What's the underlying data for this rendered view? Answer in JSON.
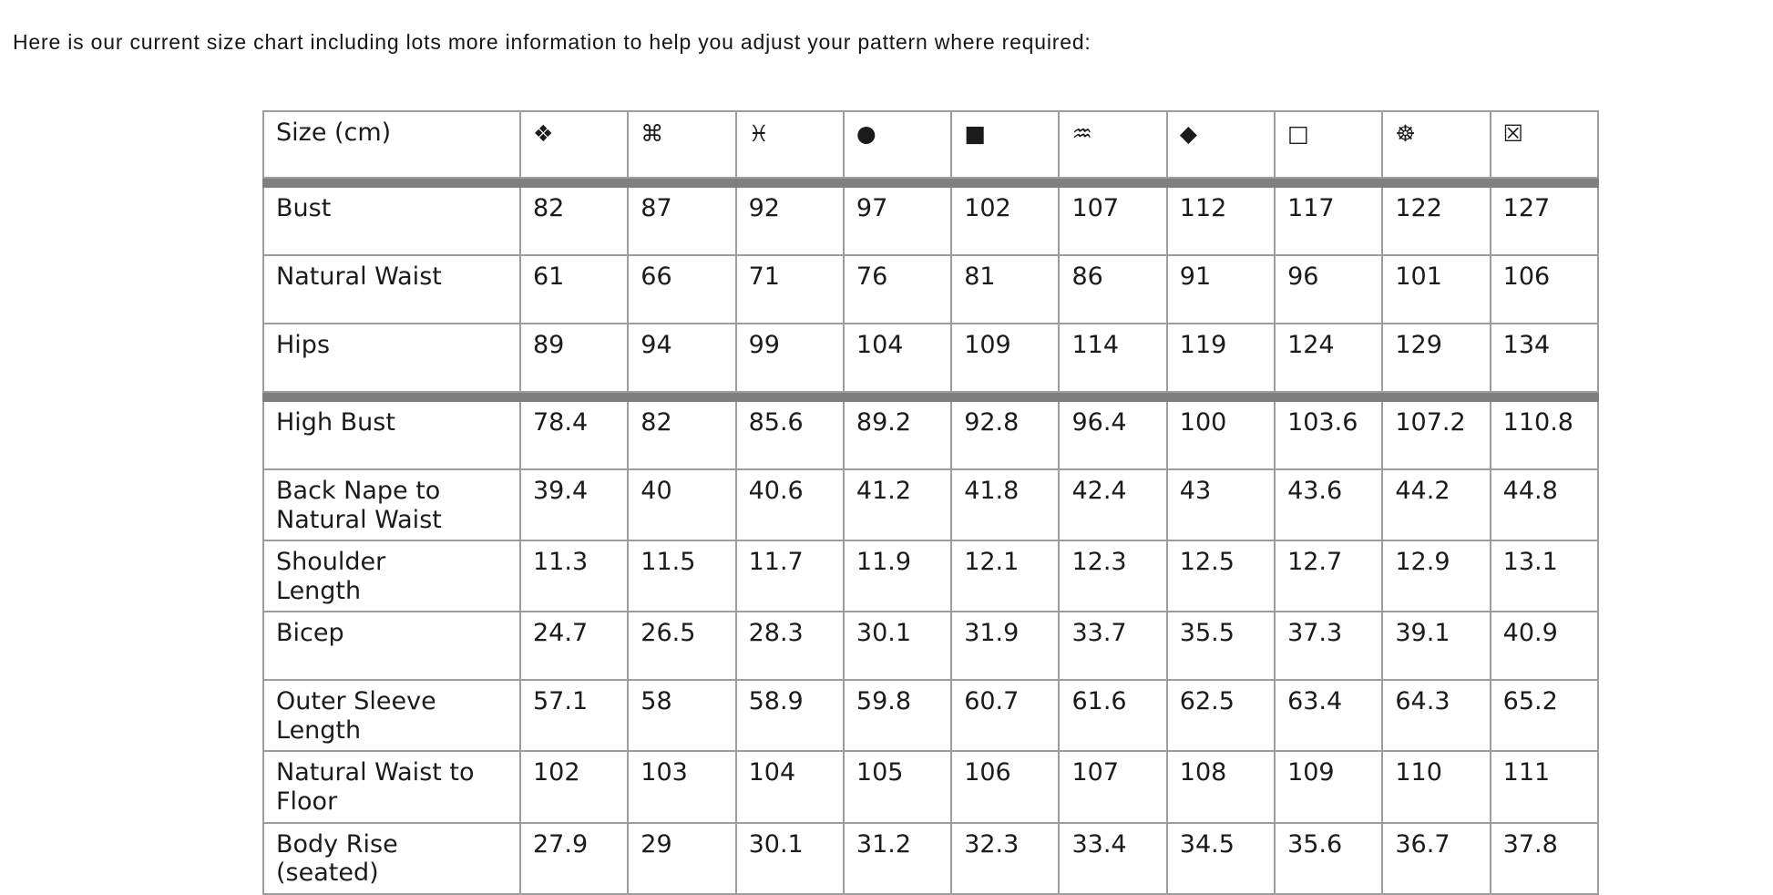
{
  "intro": "Here is our current size chart including lots more information to help you adjust your pattern where required:",
  "table": {
    "header": {
      "label": "Size (cm)",
      "size_symbols": [
        {
          "name": "four-diamonds",
          "glyph": "❖"
        },
        {
          "name": "command-sign",
          "glyph": "⌘"
        },
        {
          "name": "pisces-sign",
          "glyph": "♓"
        },
        {
          "name": "black-circle",
          "glyph": "●"
        },
        {
          "name": "black-square",
          "glyph": "■"
        },
        {
          "name": "double-waves",
          "glyph": "♒"
        },
        {
          "name": "black-diamond",
          "glyph": "◆"
        },
        {
          "name": "white-square",
          "glyph": "□"
        },
        {
          "name": "wheel",
          "glyph": "☸"
        },
        {
          "name": "boxed-x",
          "glyph": "☒"
        }
      ]
    },
    "groups": [
      {
        "rows": [
          {
            "label": "Bust",
            "values": [
              "82",
              "87",
              "92",
              "97",
              "102",
              "107",
              "112",
              "117",
              "122",
              "127"
            ]
          },
          {
            "label": "Natural Waist",
            "values": [
              "61",
              "66",
              "71",
              "76",
              "81",
              "86",
              "91",
              "96",
              "101",
              "106"
            ]
          },
          {
            "label": "Hips",
            "values": [
              "89",
              "94",
              "99",
              "104",
              "109",
              "114",
              "119",
              "124",
              "129",
              "134"
            ]
          }
        ]
      },
      {
        "rows": [
          {
            "label": "High Bust",
            "values": [
              "78.4",
              "82",
              "85.6",
              "89.2",
              "92.8",
              "96.4",
              "100",
              "103.6",
              "107.2",
              "110.8"
            ]
          },
          {
            "label": "Back Nape to Natural Waist",
            "values": [
              "39.4",
              "40",
              "40.6",
              "41.2",
              "41.8",
              "42.4",
              "43",
              "43.6",
              "44.2",
              "44.8"
            ]
          },
          {
            "label": "Shoulder Length",
            "values": [
              "11.3",
              "11.5",
              "11.7",
              "11.9",
              "12.1",
              "12.3",
              "12.5",
              "12.7",
              "12.9",
              "13.1"
            ]
          },
          {
            "label": "Bicep",
            "values": [
              "24.7",
              "26.5",
              "28.3",
              "30.1",
              "31.9",
              "33.7",
              "35.5",
              "37.3",
              "39.1",
              "40.9"
            ]
          },
          {
            "label": "Outer Sleeve Length",
            "values": [
              "57.1",
              "58",
              "58.9",
              "59.8",
              "60.7",
              "61.6",
              "62.5",
              "63.4",
              "64.3",
              "65.2"
            ]
          },
          {
            "label": "Natural Waist to Floor",
            "values": [
              "102",
              "103",
              "104",
              "105",
              "106",
              "107",
              "108",
              "109",
              "110",
              "111"
            ]
          },
          {
            "label": "Body Rise (seated)",
            "values": [
              "27.9",
              "29",
              "30.1",
              "31.2",
              "32.3",
              "33.4",
              "34.5",
              "35.6",
              "36.7",
              "37.8"
            ]
          }
        ]
      }
    ]
  },
  "colors": {
    "background": "#ffffff",
    "text": "#1b1b1b",
    "cell_border": "#9d9d9d",
    "thick_separator": "#7f7f7f"
  }
}
